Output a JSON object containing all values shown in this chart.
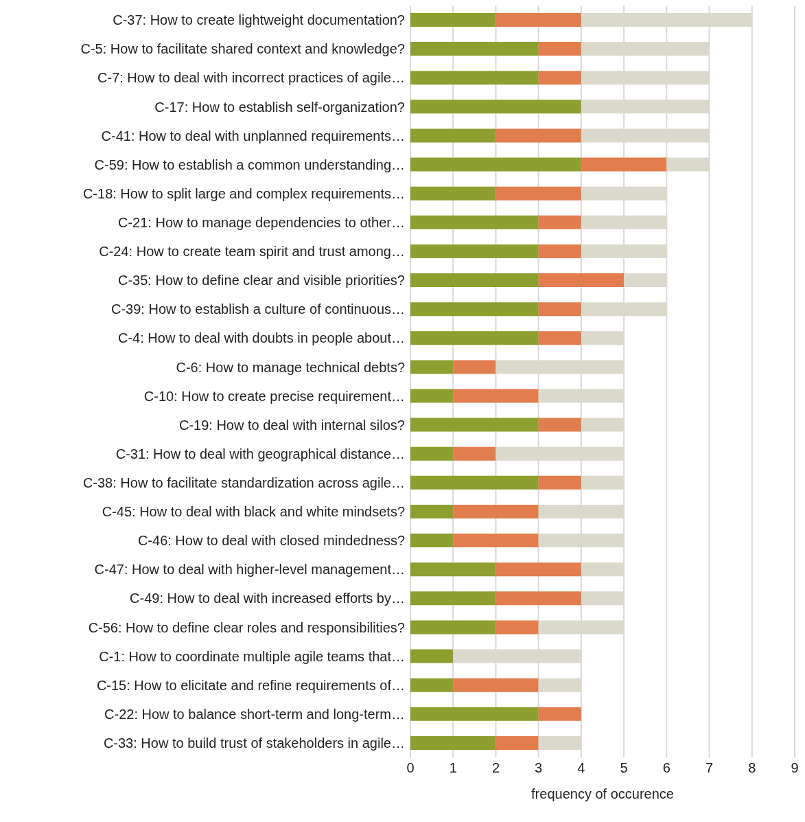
{
  "chart_data": {
    "type": "bar",
    "orientation": "horizontal",
    "stacked": true,
    "xlabel": "frequency of occurence",
    "categories": [
      "C-37: How to create lightweight documentation?",
      "C-5: How to facilitate shared context and knowledge?",
      "C-7: How to deal with incorrect practices of agile…",
      "C-17: How to establish self-organization?",
      "C-41: How to deal with unplanned requirements…",
      "C-59: How to establish a common understanding…",
      "C-18: How to split large and complex requirements…",
      "C-21: How to manage dependencies to other…",
      "C-24: How to create team spirit and trust among…",
      "C-35: How to define clear and visible priorities?",
      "C-39: How to establish a culture of continuous…",
      "C-4: How to deal with doubts in people about…",
      "C-6: How to manage technical debts?",
      "C-10: How to create precise requirement…",
      "C-19: How to deal with internal silos?",
      "C-31: How to deal with geographical distance…",
      "C-38: How to facilitate standardization across agile…",
      "C-45: How to deal with black and white mindsets?",
      "C-46: How to deal with closed mindedness?",
      "C-47: How to deal with higher-level management…",
      "C-49: How to deal with increased efforts by…",
      "C-56: How to define clear roles and responsibilities?",
      "C-1: How to coordinate multiple agile teams that…",
      "C-15: How to elicitate and refine requirements of…",
      "C-22: How to balance short-term and long-term…",
      "C-33: How to build trust of stakeholders in agile…"
    ],
    "series": [
      {
        "color": "#8c9f2f",
        "values": [
          2,
          3,
          3,
          4,
          2,
          4,
          2,
          3,
          3,
          3,
          3,
          3,
          1,
          1,
          3,
          1,
          3,
          1,
          1,
          2,
          2,
          2,
          1,
          1,
          3,
          2
        ]
      },
      {
        "color": "#e27d4d",
        "values": [
          2,
          1,
          1,
          0,
          2,
          2,
          2,
          1,
          1,
          2,
          1,
          1,
          1,
          2,
          1,
          1,
          1,
          2,
          2,
          2,
          2,
          1,
          0,
          2,
          1,
          1
        ]
      },
      {
        "color": "#dbd9cc",
        "values": [
          4,
          3,
          3,
          3,
          3,
          1,
          2,
          2,
          2,
          1,
          2,
          1,
          3,
          2,
          1,
          3,
          1,
          2,
          2,
          1,
          1,
          2,
          3,
          1,
          0,
          1
        ]
      }
    ],
    "xlim": [
      0,
      9
    ],
    "xticks": [
      0,
      1,
      2,
      3,
      4,
      5,
      6,
      7,
      8,
      9
    ],
    "grid": "x"
  }
}
